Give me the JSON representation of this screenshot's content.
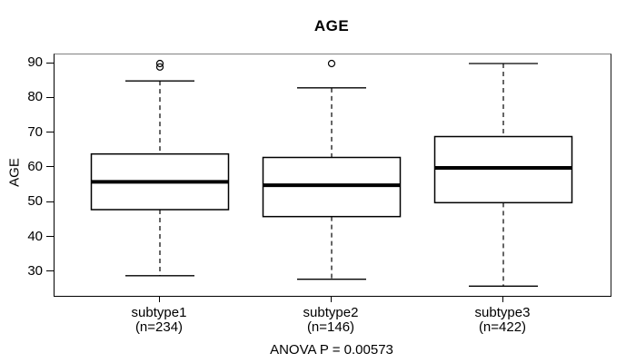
{
  "title": "AGE",
  "y_axis": {
    "label": "AGE",
    "ticks": [
      90,
      80,
      70,
      60,
      50,
      40,
      30
    ]
  },
  "x_axis": {
    "groups": [
      {
        "label": "subtype1",
        "n_label": "(n=234)"
      },
      {
        "label": "subtype2",
        "n_label": "(n=146)"
      },
      {
        "label": "subtype3",
        "n_label": "(n=422)"
      }
    ]
  },
  "footer": {
    "anova_label": "ANOVA P = 0.00573"
  },
  "colors": {
    "background": "#ffffff",
    "line": "#000000",
    "frame_top": "#808080",
    "box_fill": "#ffffff"
  },
  "chart_data": {
    "type": "boxplot",
    "title": "AGE",
    "ylabel": "AGE",
    "xlabel": "",
    "ylim": [
      23.4,
      92.6
    ],
    "yticks": [
      30,
      40,
      50,
      60,
      70,
      80,
      90
    ],
    "grid": false,
    "categories": [
      "subtype1",
      "subtype2",
      "subtype3"
    ],
    "sample_sizes": [
      234,
      146,
      422
    ],
    "annotation": "ANOVA P = 0.00573",
    "series": [
      {
        "name": "subtype1",
        "n": 234,
        "whisker_low": 29,
        "q1": 48,
        "median": 56,
        "q3": 64,
        "whisker_high": 85,
        "outliers": [
          89,
          90
        ]
      },
      {
        "name": "subtype2",
        "n": 146,
        "whisker_low": 28,
        "q1": 46,
        "median": 55,
        "q3": 63,
        "whisker_high": 83,
        "outliers": [
          90
        ]
      },
      {
        "name": "subtype3",
        "n": 422,
        "whisker_low": 26,
        "q1": 50,
        "median": 60,
        "q3": 69,
        "whisker_high": 90,
        "outliers": []
      }
    ]
  }
}
